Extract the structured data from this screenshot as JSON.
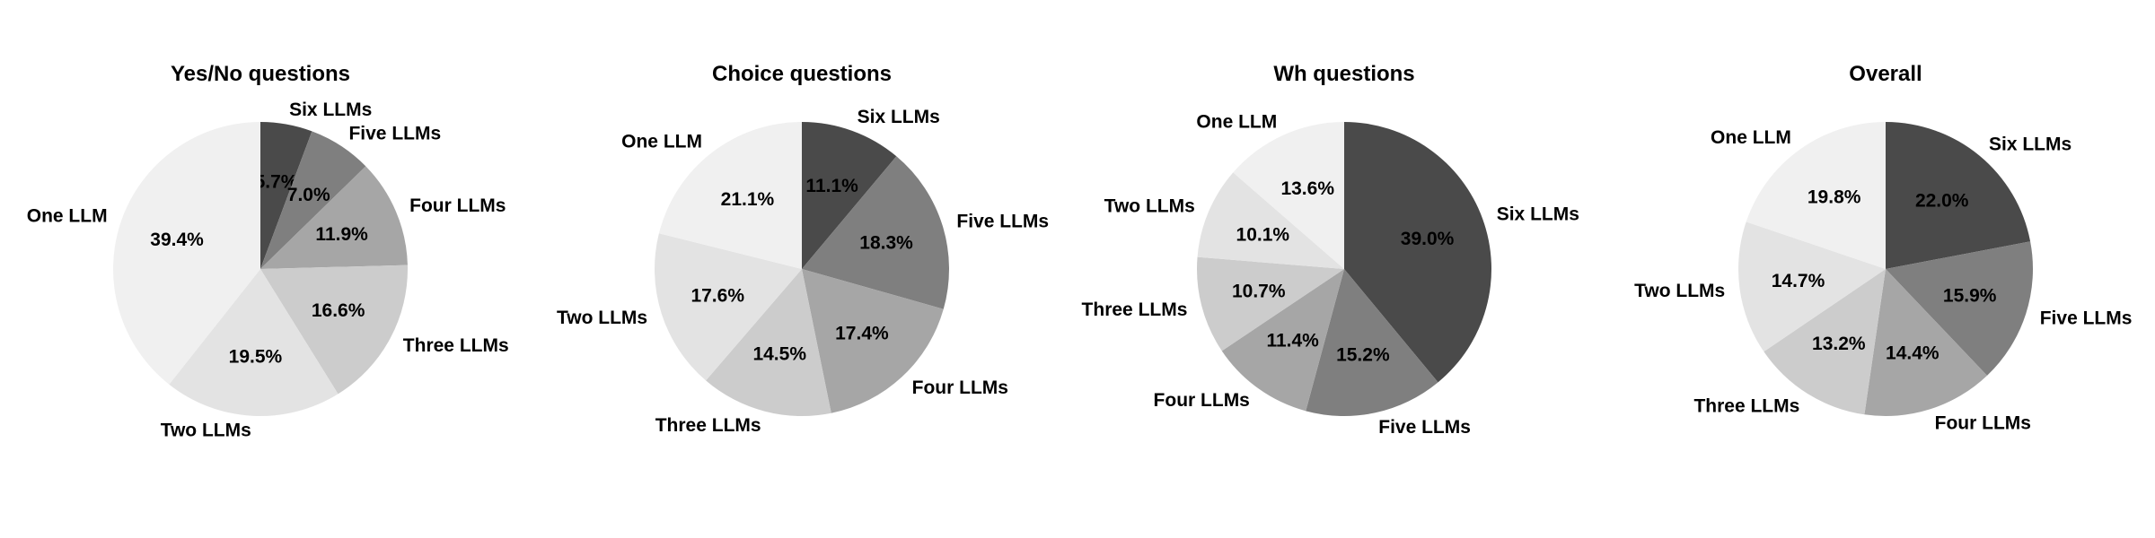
{
  "chart_data": [
    {
      "type": "pie",
      "title": "Yes/No questions",
      "start_angle_deg": 90,
      "direction": "clockwise",
      "slices": [
        {
          "label": "Six LLMs",
          "value": 5.7,
          "pct_label": "5.7%",
          "color": "#4a4a4a"
        },
        {
          "label": "Five LLMs",
          "value": 7.0,
          "pct_label": "7.0%",
          "color": "#7f7f7f"
        },
        {
          "label": "Four LLMs",
          "value": 11.9,
          "pct_label": "11.9%",
          "color": "#a6a6a6"
        },
        {
          "label": "Three LLMs",
          "value": 16.6,
          "pct_label": "16.6%",
          "color": "#cccccc"
        },
        {
          "label": "Two LLMs",
          "value": 19.5,
          "pct_label": "19.5%",
          "color": "#e3e3e3"
        },
        {
          "label": "One LLM",
          "value": 39.4,
          "pct_label": "39.4%",
          "color": "#f0f0f0"
        }
      ]
    },
    {
      "type": "pie",
      "title": "Choice questions",
      "start_angle_deg": 90,
      "direction": "clockwise",
      "slices": [
        {
          "label": "Six LLMs",
          "value": 11.1,
          "pct_label": "11.1%",
          "color": "#4a4a4a"
        },
        {
          "label": "Five LLMs",
          "value": 18.3,
          "pct_label": "18.3%",
          "color": "#7f7f7f"
        },
        {
          "label": "Four LLMs",
          "value": 17.4,
          "pct_label": "17.4%",
          "color": "#a6a6a6"
        },
        {
          "label": "Three LLMs",
          "value": 14.5,
          "pct_label": "14.5%",
          "color": "#cccccc"
        },
        {
          "label": "Two LLMs",
          "value": 17.6,
          "pct_label": "17.6%",
          "color": "#e3e3e3"
        },
        {
          "label": "One LLM",
          "value": 21.1,
          "pct_label": "21.1%",
          "color": "#f0f0f0"
        }
      ]
    },
    {
      "type": "pie",
      "title": "Wh questions",
      "start_angle_deg": 90,
      "direction": "clockwise",
      "slices": [
        {
          "label": "Six LLMs",
          "value": 39.0,
          "pct_label": "39.0%",
          "color": "#4a4a4a"
        },
        {
          "label": "Five LLMs",
          "value": 15.2,
          "pct_label": "15.2%",
          "color": "#7f7f7f"
        },
        {
          "label": "Four LLMs",
          "value": 11.4,
          "pct_label": "11.4%",
          "color": "#a6a6a6"
        },
        {
          "label": "Three LLMs",
          "value": 10.7,
          "pct_label": "10.7%",
          "color": "#cccccc"
        },
        {
          "label": "Two LLMs",
          "value": 10.1,
          "pct_label": "10.1%",
          "color": "#e3e3e3"
        },
        {
          "label": "One LLM",
          "value": 13.6,
          "pct_label": "13.6%",
          "color": "#f0f0f0"
        }
      ]
    },
    {
      "type": "pie",
      "title": "Overall",
      "start_angle_deg": 90,
      "direction": "clockwise",
      "slices": [
        {
          "label": "Six LLMs",
          "value": 22.0,
          "pct_label": "22.0%",
          "color": "#4a4a4a"
        },
        {
          "label": "Five LLMs",
          "value": 15.9,
          "pct_label": "15.9%",
          "color": "#7f7f7f"
        },
        {
          "label": "Four LLMs",
          "value": 14.4,
          "pct_label": "14.4%",
          "color": "#a6a6a6"
        },
        {
          "label": "Three LLMs",
          "value": 13.2,
          "pct_label": "13.2%",
          "color": "#cccccc"
        },
        {
          "label": "Two LLMs",
          "value": 14.7,
          "pct_label": "14.7%",
          "color": "#e3e3e3"
        },
        {
          "label": "One LLM",
          "value": 19.8,
          "pct_label": "19.8%",
          "color": "#f0f0f0"
        }
      ]
    }
  ]
}
